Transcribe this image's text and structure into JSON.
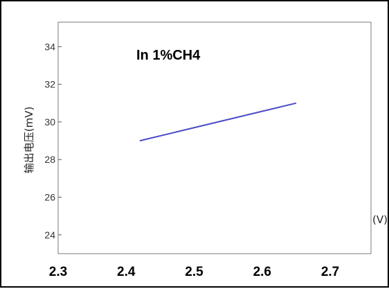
{
  "chart_data": {
    "type": "line",
    "x": [
      2.42,
      2.65
    ],
    "series": [
      {
        "values": [
          29.0,
          31.0
        ],
        "color": "#4b4bc8"
      }
    ],
    "xlim": [
      2.3,
      2.76
    ],
    "ylim": [
      23,
      35.3
    ],
    "x_ticks": [
      "2.3",
      "2.4",
      "2.5",
      "2.6",
      "2.7"
    ],
    "y_ticks": [
      "24",
      "26",
      "28",
      "30",
      "32",
      "34"
    ],
    "ylabel": "输出电压(mV)",
    "xlabel": "(V)",
    "annotation": "In 1%CH4",
    "grid": false
  }
}
